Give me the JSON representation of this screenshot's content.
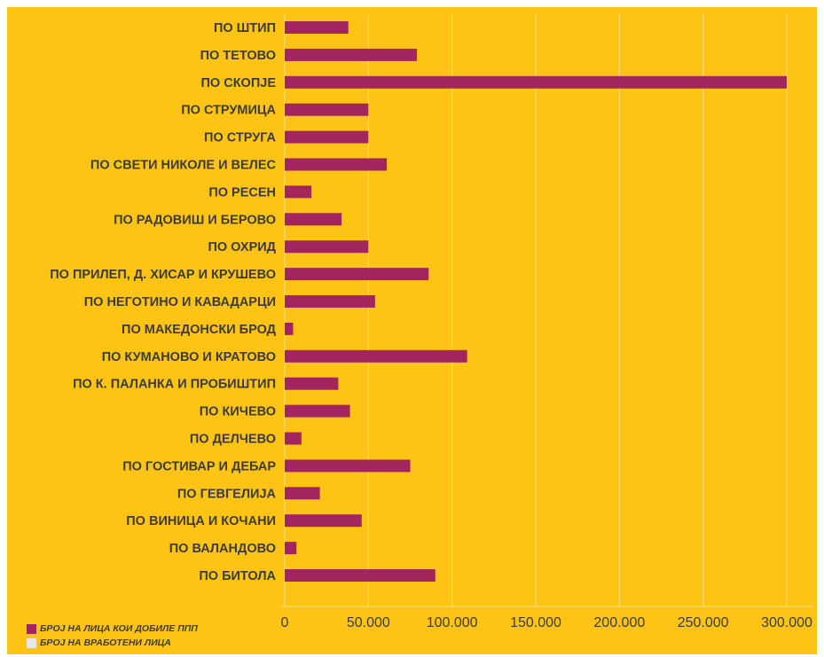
{
  "chart_data": {
    "type": "bar",
    "orientation": "horizontal",
    "categories": [
      "ПО ШТИП",
      "ПО ТЕТОВО",
      "ПО СКОПЈЕ",
      "ПО СТРУМИЦА",
      "ПО СТРУГА",
      "ПО СВЕТИ НИКОЛЕ И ВЕЛЕС",
      "ПО РЕСЕН",
      "ПО РАДОВИШ И БЕРОВО",
      "ПО ОХРИД",
      "ПО ПРИЛЕП, Д. ХИСАР И КРУШЕВО",
      "ПО НЕГОТИНО И КАВАДАРЦИ",
      "ПО МАКЕДОНСКИ БРОД",
      "ПО КУМАНОВО И КРАТОВО",
      "ПО К. ПАЛАНКА И ПРОБИШТИП",
      "ПО КИЧЕВО",
      "ПО ДЕЛЧЕВО",
      "ПО ГОСТИВАР И ДЕБАР",
      "ПО ГЕВГЕЛИЈА",
      "ПО ВИНИЦА И КОЧАНИ",
      "ПО ВАЛАНДОВО",
      "ПО БИТОЛА"
    ],
    "series": [
      {
        "name": "БРОЈ НА ЛИЦА КОИ ДОБИЛЕ ППП",
        "color": "#A3255E",
        "values": [
          38000,
          79000,
          300000,
          50000,
          50000,
          61000,
          16000,
          34000,
          50000,
          86000,
          54000,
          5000,
          109000,
          32000,
          39000,
          10000,
          75000,
          21000,
          46000,
          7000,
          90000
        ]
      },
      {
        "name": "БРОЈ НА ВРАБОТЕНИ ЛИЦА",
        "color": "#E8E8E8",
        "values": [
          0,
          0,
          0,
          0,
          0,
          0,
          0,
          0,
          0,
          0,
          0,
          0,
          0,
          0,
          0,
          0,
          0,
          0,
          0,
          0,
          0
        ]
      }
    ],
    "xlim": [
      0,
      300000
    ],
    "xticks": [
      0,
      50000,
      100000,
      150000,
      200000,
      250000,
      300000
    ],
    "xtick_labels": [
      "0",
      "50.000",
      "100.000",
      "150.000",
      "200.000",
      "250.000",
      "300.000"
    ],
    "title": "",
    "xlabel": "",
    "ylabel": "",
    "grid": true,
    "legend_position": "bottom-left",
    "background": "#FDC416",
    "gridline_color": "#F5DC80",
    "label_color": "#3b3b3b"
  }
}
